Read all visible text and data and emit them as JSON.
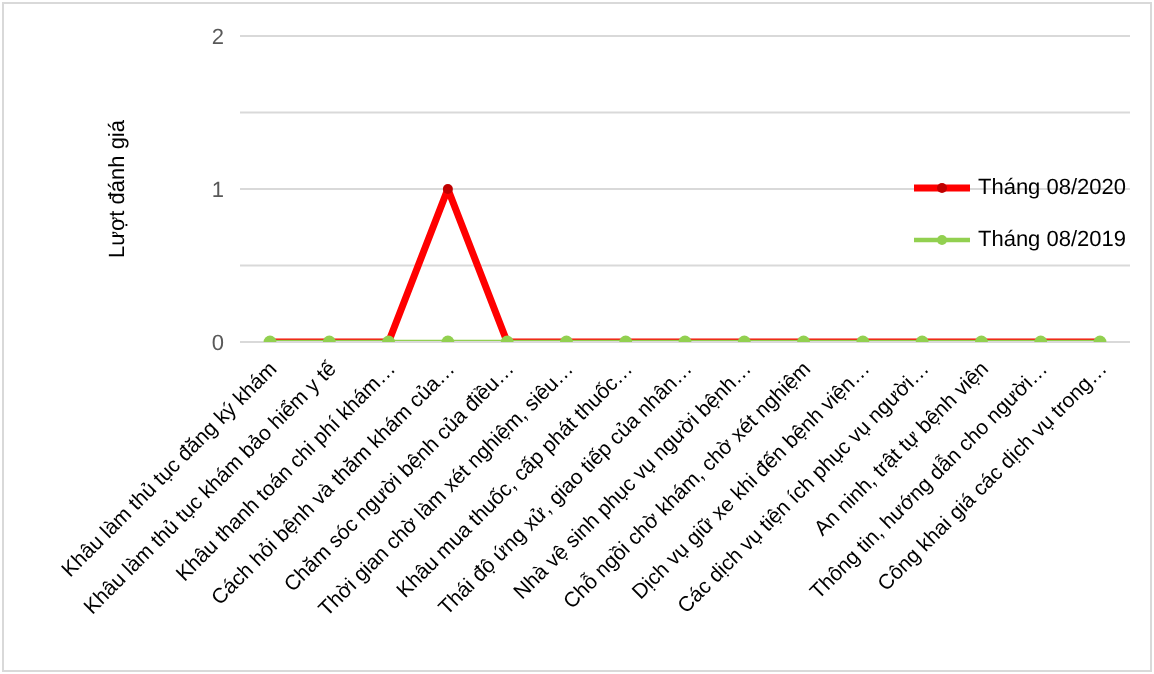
{
  "chart_data": {
    "type": "line",
    "ylabel": "Lượt đánh giá",
    "categories": [
      "Khâu làm thủ tục đăng ký khám",
      "Khâu làm thủ tục khám bảo hiểm y tế",
      "Khâu thanh toán chi phí khám…",
      "Cách hỏi bệnh và thăm khám của…",
      "Chăm sóc người bệnh của điều…",
      "Thời gian chờ làm xét nghiệm, siêu…",
      "Khâu mua thuốc, cấp phát thuốc…",
      "Thái độ ứng xử, giao tiếp của nhân…",
      "Nhà vệ sinh phục vụ người bệnh…",
      "Chỗ ngồi chờ khám, chờ xét nghiệm",
      "Dịch vụ giữ xe khi đến bệnh viện…",
      "Các dịch vụ tiện ích phục vụ người…",
      "An ninh, trật tự bệnh viện",
      "Thông tin, hướng dẫn cho người…",
      "Công khai giá các dịch vụ trong…"
    ],
    "series": [
      {
        "name": "Tháng 08/2020",
        "color": "#ff0000",
        "values": [
          0,
          0,
          0,
          1,
          0,
          0,
          0,
          0,
          0,
          0,
          0,
          0,
          0,
          0,
          0
        ]
      },
      {
        "name": "Tháng 08/2019",
        "color": "#92d050",
        "values": [
          0,
          0,
          0,
          0,
          0,
          0,
          0,
          0,
          0,
          0,
          0,
          0,
          0,
          0,
          0
        ]
      }
    ],
    "ylim": [
      0,
      2
    ],
    "yticks": [
      0,
      {
        "value": 0.5,
        "label": null
      },
      1,
      {
        "value": 1.5,
        "label": null
      },
      2
    ],
    "grid": "y",
    "legend": "right",
    "marker": "circle",
    "line_style": "solid"
  }
}
